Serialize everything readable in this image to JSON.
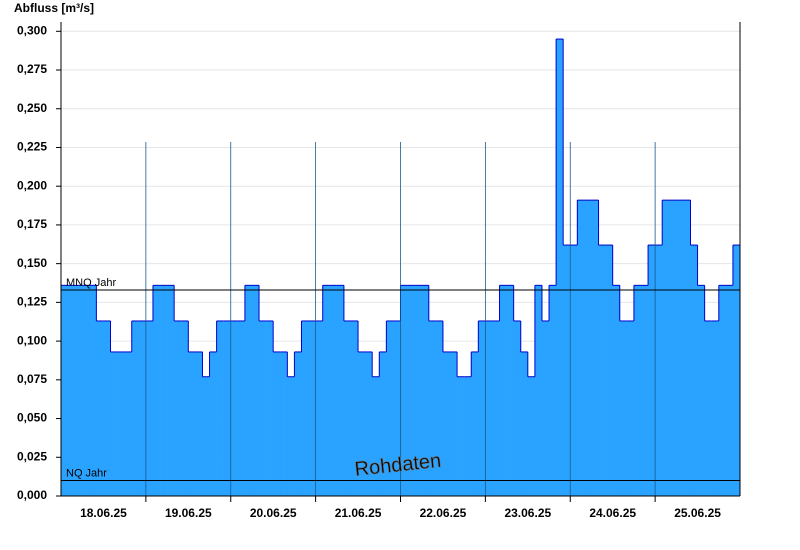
{
  "chart_data": {
    "type": "step-area",
    "title": "Abfluss [m³/s]",
    "annotation": "Rohdaten",
    "color": "#29a3ff",
    "line_color": "#0000cc",
    "grid": true,
    "categories": [
      null,
      null,
      null,
      null,
      null,
      null,
      "18.06.25",
      null,
      null,
      null,
      null,
      null,
      null,
      null,
      null,
      null,
      null,
      null,
      "19.06.25",
      null,
      null,
      null,
      null,
      null,
      null,
      null,
      null,
      null,
      null,
      null,
      "20.06.25",
      null,
      null,
      null,
      null,
      null,
      null,
      null,
      null,
      null,
      null,
      null,
      "21.06.25",
      null,
      null,
      null,
      null,
      null,
      null,
      null,
      null,
      null,
      null,
      null,
      "22.06.25",
      null,
      null,
      null,
      null,
      null,
      null,
      null,
      null,
      null,
      null,
      null,
      "23.06.25",
      null,
      null,
      null,
      null,
      null,
      null,
      null,
      null,
      null,
      null,
      null,
      "24.06.25",
      null,
      null,
      null,
      null,
      null,
      null,
      null,
      null,
      null,
      null,
      null,
      "25.06.25",
      null,
      null,
      null,
      null,
      null
    ],
    "values": [
      0.136,
      0.136,
      0.136,
      0.136,
      0.136,
      0.113,
      0.113,
      0.093,
      0.093,
      0.093,
      0.113,
      0.113,
      0.113,
      0.136,
      0.136,
      0.136,
      0.113,
      0.113,
      0.093,
      0.093,
      0.077,
      0.093,
      0.113,
      0.113,
      0.113,
      0.113,
      0.136,
      0.136,
      0.113,
      0.113,
      0.093,
      0.093,
      0.077,
      0.093,
      0.113,
      0.113,
      0.113,
      0.136,
      0.136,
      0.136,
      0.113,
      0.113,
      0.093,
      0.093,
      0.077,
      0.093,
      0.113,
      0.113,
      0.136,
      0.136,
      0.136,
      0.136,
      0.113,
      0.113,
      0.093,
      0.093,
      0.077,
      0.077,
      0.093,
      0.113,
      0.113,
      0.113,
      0.136,
      0.136,
      0.113,
      0.093,
      0.077,
      0.136,
      0.113,
      0.136,
      0.295,
      0.162,
      0.162,
      0.191,
      0.191,
      0.191,
      0.162,
      0.162,
      0.136,
      0.113,
      0.113,
      0.136,
      0.136,
      0.162,
      0.162,
      0.191,
      0.191,
      0.191,
      0.191,
      0.162,
      0.136,
      0.113,
      0.113,
      0.136,
      0.136,
      0.162
    ],
    "reference_lines": [
      {
        "label": "MNQ Jahr",
        "value": 0.133
      },
      {
        "label": "NQ Jahr",
        "value": 0.01
      }
    ],
    "ylim": [
      0,
      0.306
    ],
    "yticks": [
      {
        "value": 0,
        "label": "0,000"
      },
      {
        "value": 0.025,
        "label": "0,025"
      },
      {
        "value": 0.05,
        "label": "0,050"
      },
      {
        "value": 0.075,
        "label": "0,075"
      },
      {
        "value": 0.1,
        "label": "0,100"
      },
      {
        "value": 0.125,
        "label": "0,125"
      },
      {
        "value": 0.15,
        "label": "0,150"
      },
      {
        "value": 0.175,
        "label": "0,175"
      },
      {
        "value": 0.2,
        "label": "0,200"
      },
      {
        "value": 0.225,
        "label": "0,225"
      },
      {
        "value": 0.25,
        "label": "0,250"
      },
      {
        "value": 0.275,
        "label": "0,275"
      },
      {
        "value": 0.3,
        "label": "0,300"
      }
    ]
  }
}
